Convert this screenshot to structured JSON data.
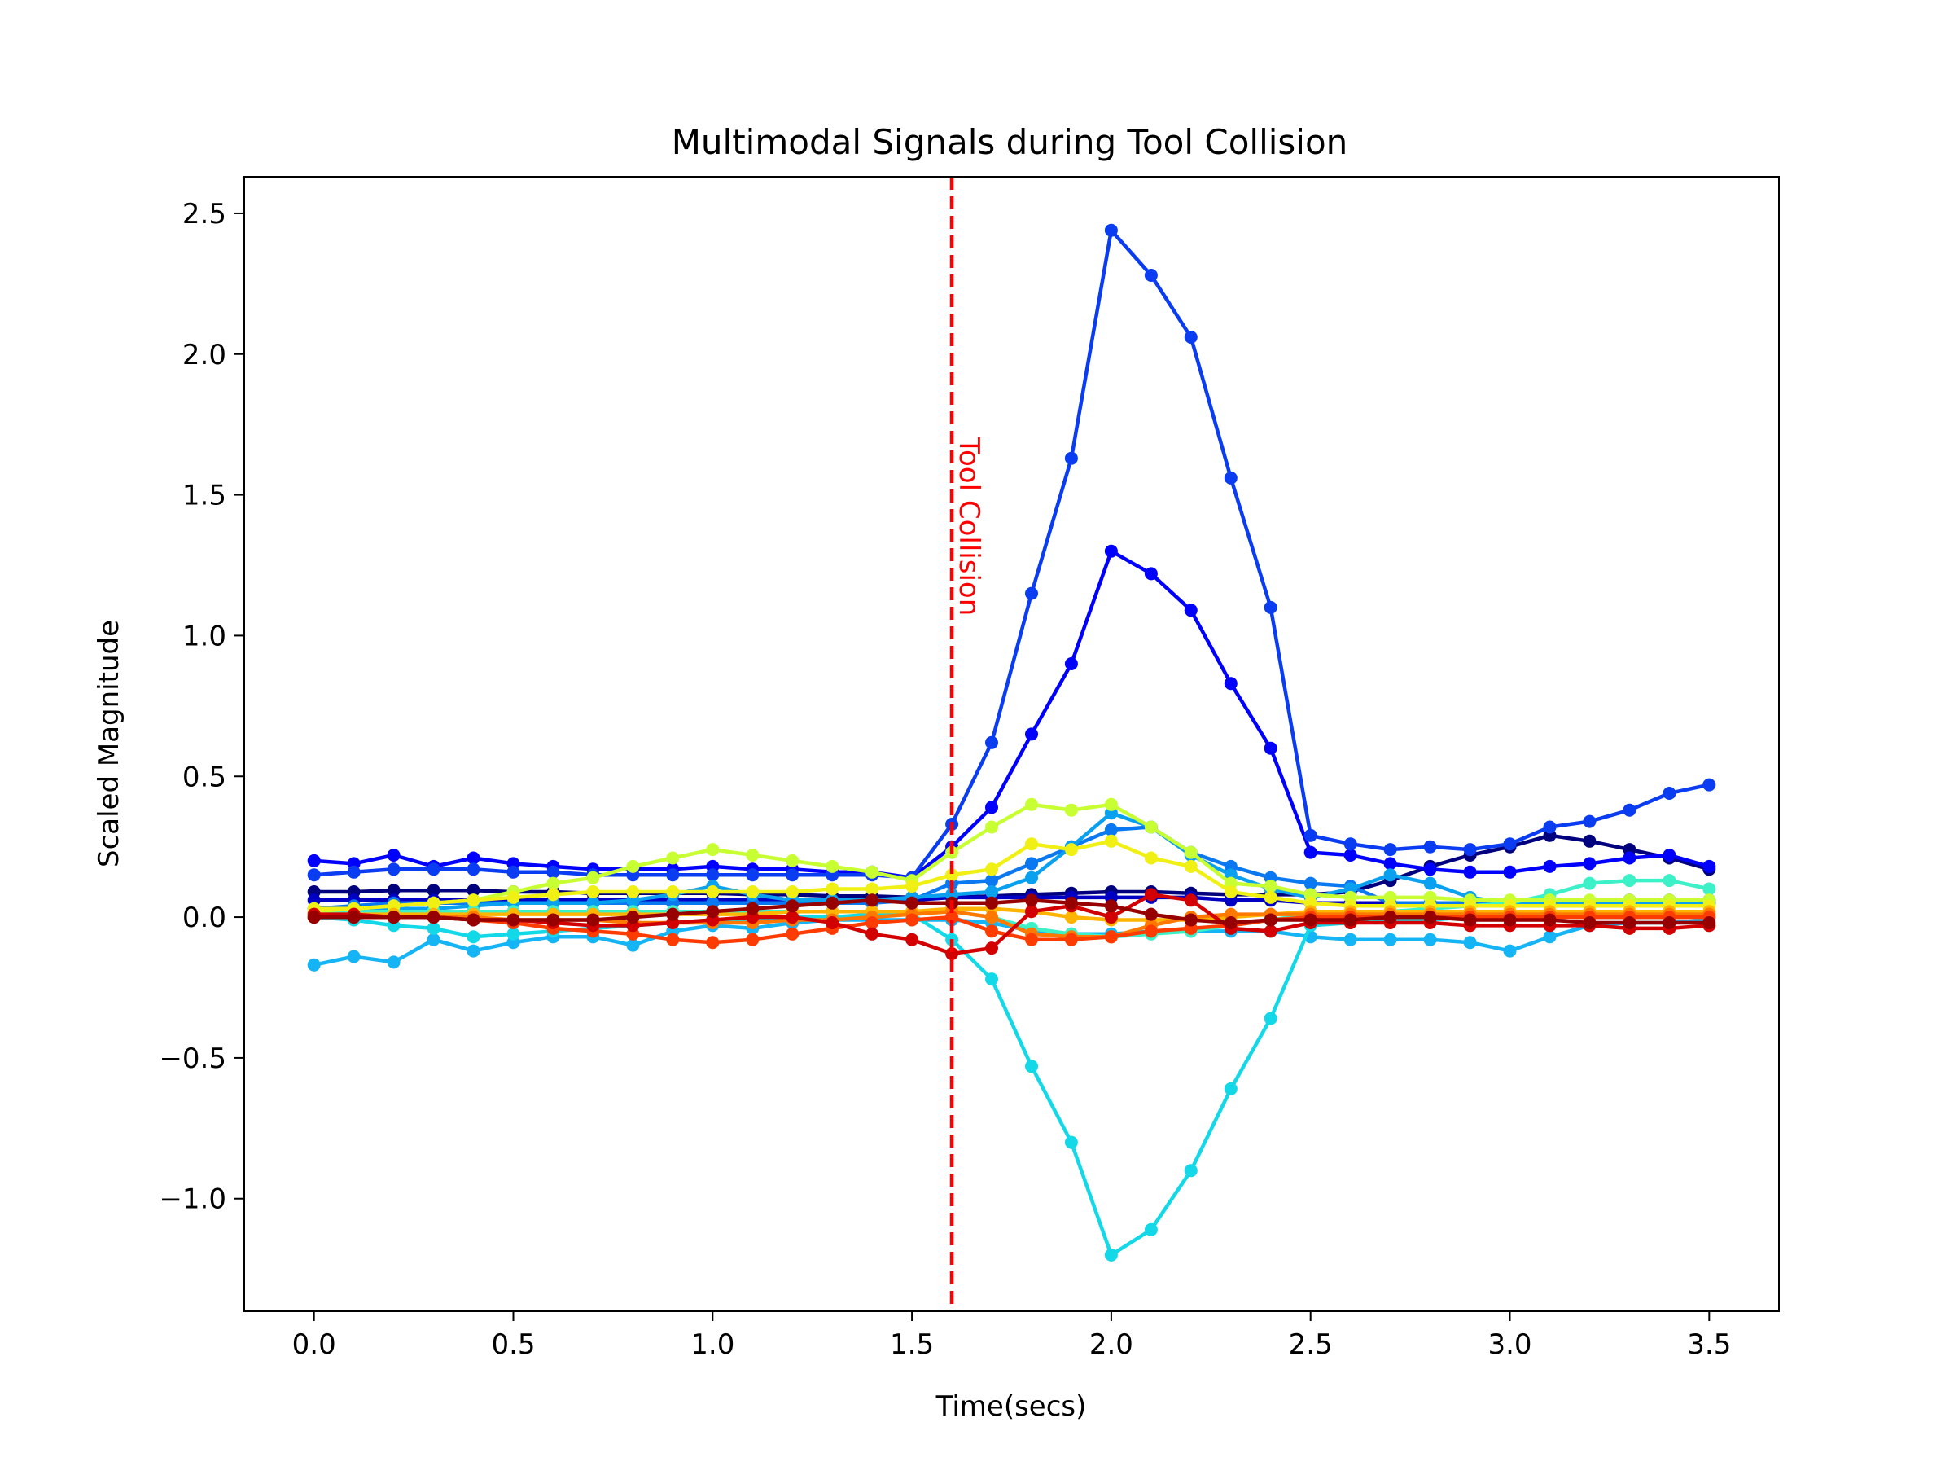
{
  "chart_data": {
    "type": "line",
    "title": "Multimodal Signals during Tool Collision",
    "xlabel": "Time(secs)",
    "ylabel": "Scaled Magnitude",
    "xlim": [
      -0.175,
      3.675
    ],
    "ylim": [
      -1.4,
      2.63
    ],
    "xticks": [
      0.0,
      0.5,
      1.0,
      1.5,
      2.0,
      2.5,
      3.0,
      3.5
    ],
    "xtick_labels": [
      "0.0",
      "0.5",
      "1.0",
      "1.5",
      "2.0",
      "2.5",
      "3.0",
      "3.5"
    ],
    "yticks": [
      -1.0,
      -0.5,
      0.0,
      0.5,
      1.0,
      1.5,
      2.0,
      2.5
    ],
    "ytick_labels": [
      "−1.0",
      "−0.5",
      "0.0",
      "0.5",
      "1.0",
      "1.5",
      "2.0",
      "2.5"
    ],
    "grid": false,
    "legend": "none",
    "annotation": {
      "x": 1.6,
      "text": "Tool Collision",
      "color": "#ff0000"
    },
    "x": [
      0.0,
      0.1,
      0.2,
      0.3,
      0.4,
      0.5,
      0.6,
      0.7,
      0.8,
      0.9,
      1.0,
      1.1,
      1.2,
      1.3,
      1.4,
      1.5,
      1.6,
      1.7,
      1.8,
      1.9,
      2.0,
      2.1,
      2.2,
      2.3,
      2.4,
      2.5,
      2.6,
      2.7,
      2.8,
      2.9,
      3.0,
      3.1,
      3.2,
      3.3,
      3.4,
      3.5
    ],
    "series": [
      {
        "color": "#00007f",
        "values": [
          0.09,
          0.09,
          0.095,
          0.095,
          0.095,
          0.09,
          0.09,
          0.085,
          0.085,
          0.085,
          0.085,
          0.08,
          0.08,
          0.075,
          0.075,
          0.07,
          0.07,
          0.075,
          0.08,
          0.085,
          0.09,
          0.09,
          0.085,
          0.08,
          0.08,
          0.08,
          0.09,
          0.13,
          0.18,
          0.22,
          0.25,
          0.29,
          0.27,
          0.24,
          0.21,
          0.17
        ]
      },
      {
        "color": "#0000c4",
        "values": [
          0.06,
          0.06,
          0.06,
          0.06,
          0.06,
          0.06,
          0.06,
          0.06,
          0.06,
          0.06,
          0.06,
          0.06,
          0.06,
          0.06,
          0.06,
          0.06,
          0.07,
          0.07,
          0.07,
          0.07,
          0.07,
          0.07,
          0.07,
          0.06,
          0.06,
          0.05,
          0.05,
          0.05,
          0.05,
          0.05,
          0.05,
          0.05,
          0.05,
          0.06,
          0.06,
          0.06
        ]
      },
      {
        "color": "#0000ff",
        "values": [
          0.2,
          0.19,
          0.22,
          0.18,
          0.21,
          0.19,
          0.18,
          0.17,
          0.17,
          0.17,
          0.18,
          0.17,
          0.17,
          0.16,
          0.16,
          0.14,
          0.25,
          0.39,
          0.65,
          0.9,
          1.3,
          1.22,
          1.09,
          0.83,
          0.6,
          0.23,
          0.22,
          0.19,
          0.17,
          0.16,
          0.16,
          0.18,
          0.19,
          0.21,
          0.22,
          0.18
        ]
      },
      {
        "color": "#0a3cf2",
        "values": [
          0.15,
          0.16,
          0.17,
          0.17,
          0.17,
          0.16,
          0.16,
          0.15,
          0.15,
          0.15,
          0.15,
          0.15,
          0.15,
          0.15,
          0.15,
          0.14,
          0.33,
          0.62,
          1.15,
          1.63,
          2.44,
          2.28,
          2.06,
          1.56,
          1.1,
          0.29,
          0.26,
          0.24,
          0.25,
          0.24,
          0.26,
          0.32,
          0.34,
          0.38,
          0.44,
          0.47
        ]
      },
      {
        "color": "#0a78f0",
        "values": [
          0.03,
          0.04,
          0.05,
          0.05,
          0.05,
          0.05,
          0.05,
          0.05,
          0.05,
          0.05,
          0.05,
          0.05,
          0.05,
          0.05,
          0.05,
          0.06,
          0.12,
          0.13,
          0.19,
          0.25,
          0.31,
          0.32,
          0.23,
          0.18,
          0.14,
          0.12,
          0.11,
          0.05,
          0.05,
          0.05,
          0.05,
          0.05,
          0.05,
          0.05,
          0.05,
          0.05
        ]
      },
      {
        "color": "#0aa0f0",
        "values": [
          0.02,
          0.03,
          0.03,
          0.03,
          0.04,
          0.05,
          0.05,
          0.05,
          0.06,
          0.08,
          0.11,
          0.08,
          0.06,
          0.06,
          0.06,
          0.07,
          0.08,
          0.09,
          0.14,
          0.25,
          0.37,
          0.32,
          0.22,
          0.15,
          0.1,
          0.07,
          0.1,
          0.15,
          0.12,
          0.07,
          0.05,
          0.05,
          0.05,
          0.05,
          0.05,
          0.05
        ]
      },
      {
        "color": "#14b4f5",
        "values": [
          -0.17,
          -0.14,
          -0.16,
          -0.08,
          -0.12,
          -0.09,
          -0.07,
          -0.07,
          -0.1,
          -0.05,
          -0.03,
          -0.04,
          -0.02,
          -0.01,
          -0.01,
          -0.01,
          -0.01,
          -0.02,
          -0.05,
          -0.06,
          -0.06,
          -0.05,
          -0.05,
          -0.05,
          -0.05,
          -0.07,
          -0.08,
          -0.08,
          -0.08,
          -0.09,
          -0.12,
          -0.07,
          -0.03,
          -0.02,
          -0.02,
          -0.01
        ]
      },
      {
        "color": "#12d8e8",
        "values": [
          0.0,
          -0.01,
          -0.03,
          -0.04,
          -0.07,
          -0.06,
          -0.05,
          -0.04,
          -0.03,
          -0.02,
          -0.01,
          -0.01,
          0.0,
          0.0,
          0.01,
          0.01,
          -0.08,
          -0.22,
          -0.53,
          -0.8,
          -1.2,
          -1.11,
          -0.9,
          -0.61,
          -0.36,
          -0.03,
          -0.02,
          -0.01,
          -0.01,
          0.0,
          0.0,
          0.0,
          0.0,
          0.0,
          0.0,
          0.0
        ]
      },
      {
        "color": "#3cf0c8",
        "values": [
          0.02,
          0.02,
          0.02,
          0.02,
          0.02,
          0.02,
          0.02,
          0.02,
          0.02,
          0.02,
          0.02,
          0.02,
          0.02,
          0.02,
          0.02,
          0.02,
          0.02,
          0.0,
          -0.04,
          -0.06,
          -0.07,
          -0.06,
          -0.05,
          -0.03,
          -0.01,
          0.01,
          0.02,
          0.02,
          0.03,
          0.04,
          0.05,
          0.08,
          0.12,
          0.13,
          0.13,
          0.1
        ]
      },
      {
        "color": "#c8ff32",
        "values": [
          0.02,
          0.03,
          0.04,
          0.05,
          0.06,
          0.09,
          0.12,
          0.14,
          0.18,
          0.21,
          0.24,
          0.22,
          0.2,
          0.18,
          0.16,
          0.13,
          0.23,
          0.32,
          0.4,
          0.38,
          0.4,
          0.32,
          0.23,
          0.12,
          0.11,
          0.08,
          0.07,
          0.07,
          0.07,
          0.06,
          0.06,
          0.06,
          0.06,
          0.06,
          0.06,
          0.06
        ]
      },
      {
        "color": "#f0f014",
        "values": [
          0.03,
          0.03,
          0.04,
          0.05,
          0.06,
          0.07,
          0.08,
          0.09,
          0.09,
          0.09,
          0.09,
          0.09,
          0.09,
          0.1,
          0.1,
          0.11,
          0.15,
          0.17,
          0.26,
          0.24,
          0.27,
          0.21,
          0.18,
          0.09,
          0.07,
          0.05,
          0.04,
          0.04,
          0.04,
          0.04,
          0.04,
          0.04,
          0.04,
          0.04,
          0.04,
          0.04
        ]
      },
      {
        "color": "#ffb400",
        "values": [
          0.01,
          0.01,
          0.01,
          0.01,
          0.01,
          0.01,
          0.01,
          0.01,
          0.01,
          0.01,
          0.01,
          0.01,
          0.02,
          0.02,
          0.02,
          0.02,
          0.03,
          0.03,
          0.02,
          0.0,
          -0.01,
          -0.01,
          -0.01,
          0.0,
          0.01,
          0.02,
          0.02,
          0.02,
          0.02,
          0.02,
          0.02,
          0.02,
          0.02,
          0.02,
          0.02,
          0.02
        ]
      },
      {
        "color": "#ff7800",
        "values": [
          0.0,
          0.0,
          0.0,
          0.0,
          0.0,
          -0.01,
          -0.01,
          -0.01,
          -0.02,
          -0.02,
          -0.02,
          -0.02,
          -0.01,
          -0.01,
          0.0,
          0.01,
          0.02,
          0.0,
          -0.06,
          -0.07,
          -0.07,
          -0.03,
          0.0,
          0.01,
          0.01,
          0.01,
          0.01,
          0.01,
          0.01,
          0.01,
          0.01,
          0.01,
          0.01,
          0.01,
          0.01,
          0.01
        ]
      },
      {
        "color": "#ff3c00",
        "values": [
          0.0,
          0.0,
          0.0,
          0.0,
          -0.01,
          -0.02,
          -0.04,
          -0.05,
          -0.06,
          -0.08,
          -0.09,
          -0.08,
          -0.06,
          -0.04,
          -0.02,
          -0.01,
          0.0,
          -0.05,
          -0.08,
          -0.08,
          -0.07,
          -0.05,
          -0.04,
          -0.03,
          -0.01,
          0.0,
          0.0,
          0.0,
          0.0,
          0.0,
          0.0,
          0.0,
          0.0,
          0.0,
          0.0,
          0.0
        ]
      },
      {
        "color": "#d20000",
        "values": [
          0.01,
          0.01,
          0.0,
          0.0,
          -0.01,
          -0.01,
          -0.02,
          -0.03,
          -0.03,
          -0.02,
          -0.01,
          0.0,
          0.0,
          -0.02,
          -0.06,
          -0.08,
          -0.13,
          -0.11,
          0.02,
          0.04,
          0.0,
          0.08,
          0.06,
          -0.04,
          -0.05,
          -0.02,
          -0.02,
          -0.02,
          -0.02,
          -0.03,
          -0.03,
          -0.03,
          -0.03,
          -0.04,
          -0.04,
          -0.03
        ]
      },
      {
        "color": "#960000",
        "values": [
          0.0,
          0.0,
          0.0,
          0.0,
          -0.01,
          -0.01,
          -0.01,
          -0.01,
          0.0,
          0.01,
          0.02,
          0.03,
          0.04,
          0.05,
          0.06,
          0.05,
          0.05,
          0.05,
          0.06,
          0.05,
          0.04,
          0.01,
          -0.01,
          -0.02,
          -0.01,
          -0.01,
          -0.01,
          0.0,
          0.0,
          -0.01,
          -0.01,
          -0.01,
          -0.02,
          -0.02,
          -0.02,
          -0.02
        ]
      }
    ]
  }
}
